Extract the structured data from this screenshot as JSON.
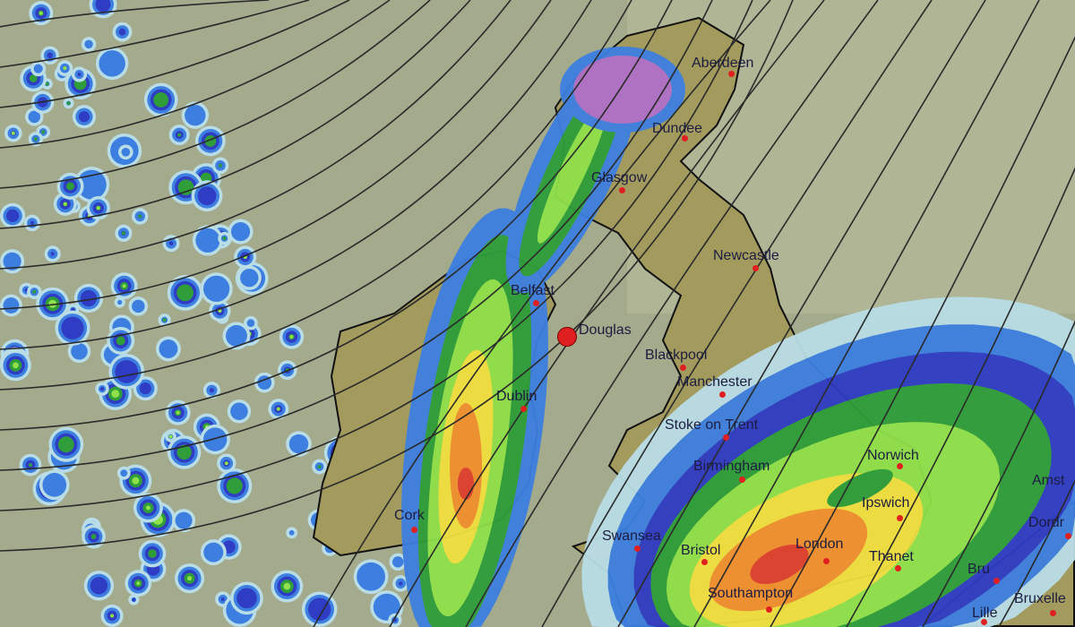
{
  "map": {
    "type": "weather precipitation forecast with isobars",
    "colors": {
      "sea": "#a4aa8c",
      "land": "#a39b5e",
      "precip_light": "#b9dde6",
      "precip_blue": "#3d7fe0",
      "precip_dark_blue": "#2f3cc4",
      "precip_green": "#2f9e3a",
      "precip_light_green": "#8fe04a",
      "precip_yellow": "#f0e040",
      "precip_orange": "#f09030",
      "precip_red": "#e04030",
      "precip_purple": "#b070c8",
      "isobar": "#2a2a2a",
      "city_dot": "#e02020"
    },
    "marker": {
      "name": "Douglas",
      "icon": "location-marker-red-circle"
    },
    "cities": [
      {
        "name": "Aberdeen"
      },
      {
        "name": "Dundee"
      },
      {
        "name": "Glasgow"
      },
      {
        "name": "Newcastle"
      },
      {
        "name": "Belfast"
      },
      {
        "name": "Douglas"
      },
      {
        "name": "Blackpool"
      },
      {
        "name": "Manchester"
      },
      {
        "name": "Dublin"
      },
      {
        "name": "Stoke on Trent"
      },
      {
        "name": "Birmingham"
      },
      {
        "name": "Norwich"
      },
      {
        "name": "Ipswich"
      },
      {
        "name": "Cork"
      },
      {
        "name": "Swansea"
      },
      {
        "name": "Bristol"
      },
      {
        "name": "London"
      },
      {
        "name": "Thanet"
      },
      {
        "name": "Southampton"
      },
      {
        "name": "Amst"
      },
      {
        "name": "Dordr"
      },
      {
        "name": "Bru"
      },
      {
        "name": "Bruxelle"
      },
      {
        "name": "Lille"
      }
    ]
  }
}
